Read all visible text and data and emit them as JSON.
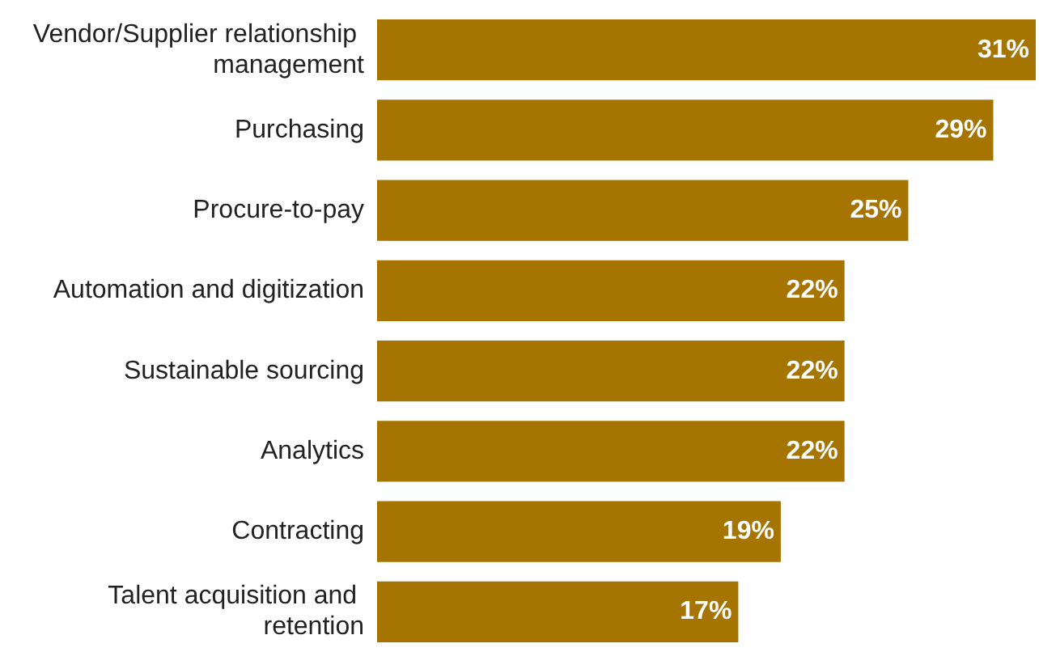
{
  "chart_data": {
    "type": "bar",
    "orientation": "horizontal",
    "categories": [
      "Vendor/Supplier relationship management",
      "Purchasing",
      "Procure-to-pay",
      "Automation and digitization",
      "Sustainable sourcing",
      "Analytics",
      "Contracting",
      "Talent acquisition and retention"
    ],
    "values": [
      31,
      29,
      25,
      22,
      22,
      22,
      19,
      17
    ],
    "value_labels": [
      "31%",
      "29%",
      "25%",
      "22%",
      "22%",
      "22%",
      "19%",
      "17%"
    ],
    "color": "#a67400"
  }
}
